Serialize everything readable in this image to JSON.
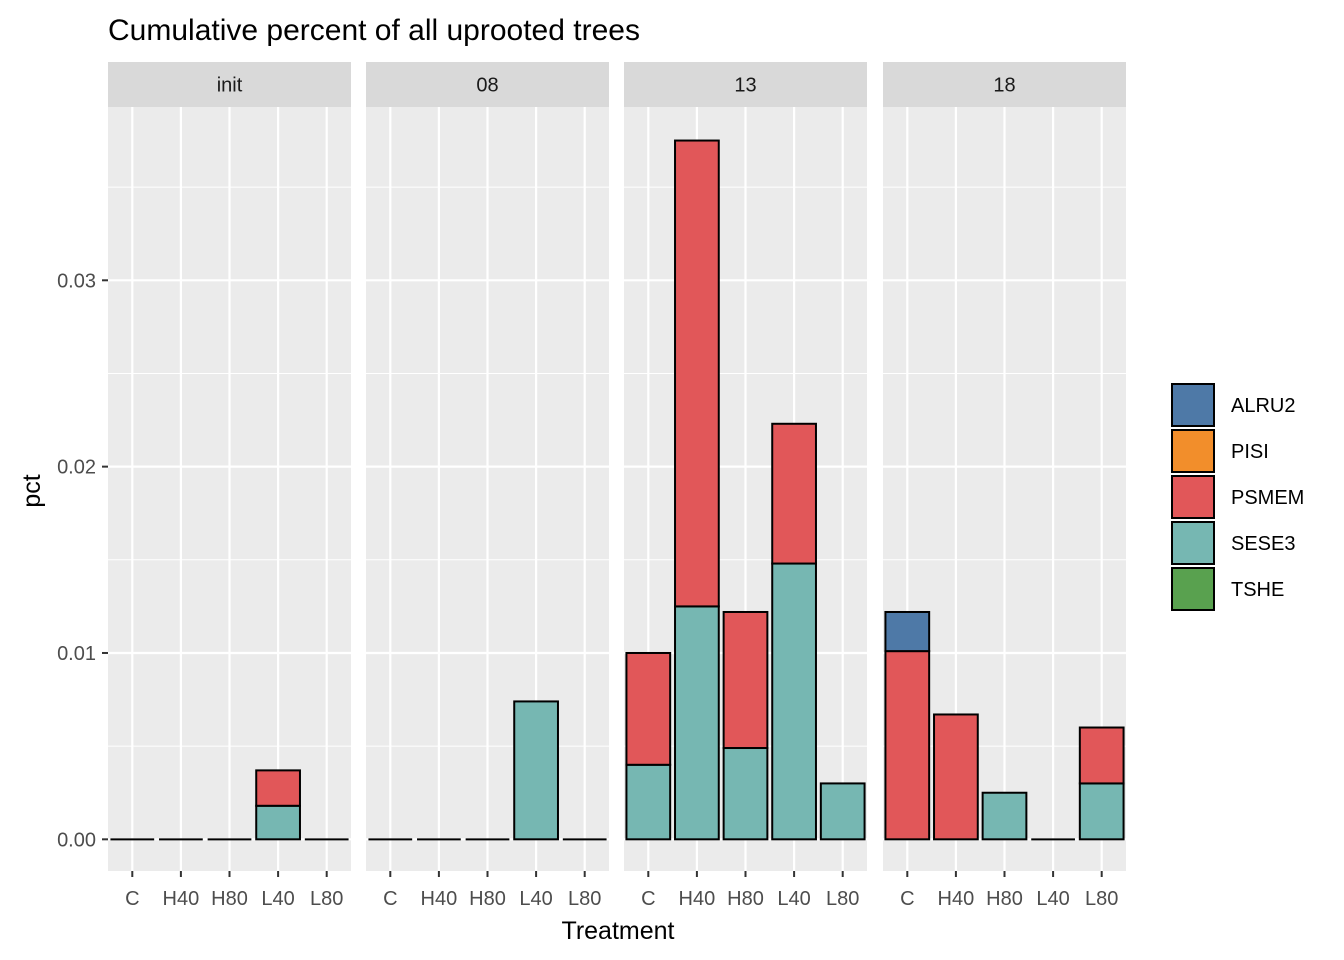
{
  "chart_data": {
    "type": "bar",
    "stacked": true,
    "title": "Cumulative percent of all uprooted trees",
    "xlabel": "Treatment",
    "ylabel": "pct",
    "ylim": [
      -0.0017,
      0.0393
    ],
    "yticks": [
      0.0,
      0.01,
      0.02,
      0.03
    ],
    "ytick_labels": [
      "0.00",
      "0.01",
      "0.02",
      "0.03"
    ],
    "categories": [
      "C",
      "H40",
      "H80",
      "L40",
      "L80"
    ],
    "facets": [
      "init",
      "08",
      "13",
      "18"
    ],
    "legend_position": "right",
    "grid": true,
    "stack_order": [
      "SESE3",
      "PSMEM",
      "ALRU2",
      "PISI",
      "TSHE"
    ],
    "series": [
      {
        "name": "ALRU2",
        "color": "#4E79A7",
        "values": [
          [
            0,
            0,
            0,
            0,
            0
          ],
          [
            0,
            0,
            0,
            0,
            0
          ],
          [
            0,
            0,
            0,
            0,
            0
          ],
          [
            0.0021,
            0,
            0,
            0,
            0
          ]
        ]
      },
      {
        "name": "PISI",
        "color": "#F28E2B",
        "values": [
          [
            0,
            0,
            0,
            0,
            0
          ],
          [
            0,
            0,
            0,
            0,
            0
          ],
          [
            0,
            0,
            0,
            0,
            0
          ],
          [
            0,
            0,
            0,
            0,
            0
          ]
        ]
      },
      {
        "name": "PSMEM",
        "color": "#E15759",
        "values": [
          [
            0,
            0,
            0,
            0.0019,
            0
          ],
          [
            0,
            0,
            0,
            0,
            0
          ],
          [
            0.006,
            0.025,
            0.0073,
            0.0075,
            0
          ],
          [
            0.0101,
            0.0067,
            0,
            0,
            0.003
          ]
        ]
      },
      {
        "name": "SESE3",
        "color": "#76B7B2",
        "values": [
          [
            0,
            0,
            0,
            0.0018,
            0
          ],
          [
            0,
            0,
            0,
            0.0074,
            0
          ],
          [
            0.004,
            0.0125,
            0.0049,
            0.0148,
            0.003
          ],
          [
            0,
            0,
            0.0025,
            0,
            0.003
          ]
        ]
      },
      {
        "name": "TSHE",
        "color": "#59A14F",
        "values": [
          [
            0,
            0,
            0,
            0,
            0
          ],
          [
            0,
            0,
            0,
            0,
            0
          ],
          [
            0,
            0,
            0,
            0,
            0
          ],
          [
            0,
            0,
            0,
            0,
            0
          ]
        ]
      }
    ]
  }
}
